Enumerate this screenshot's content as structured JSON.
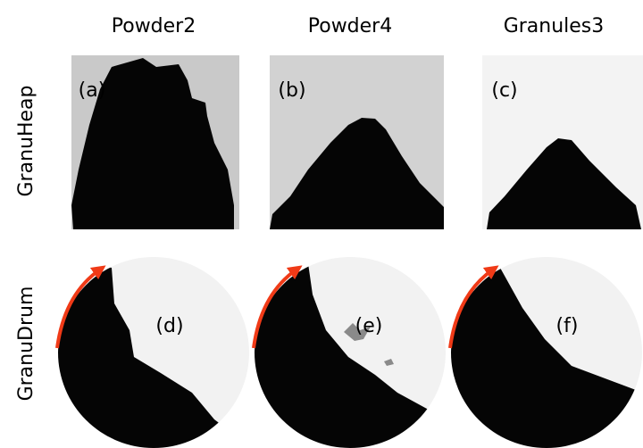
{
  "columns": [
    "Powder2",
    "Powder4",
    "Granules3"
  ],
  "rows": [
    "GranuHeap",
    "GranuDrum"
  ],
  "panels": [
    "(a)",
    "(b)",
    "(c)",
    "(d)",
    "(e)",
    "(f)"
  ]
}
